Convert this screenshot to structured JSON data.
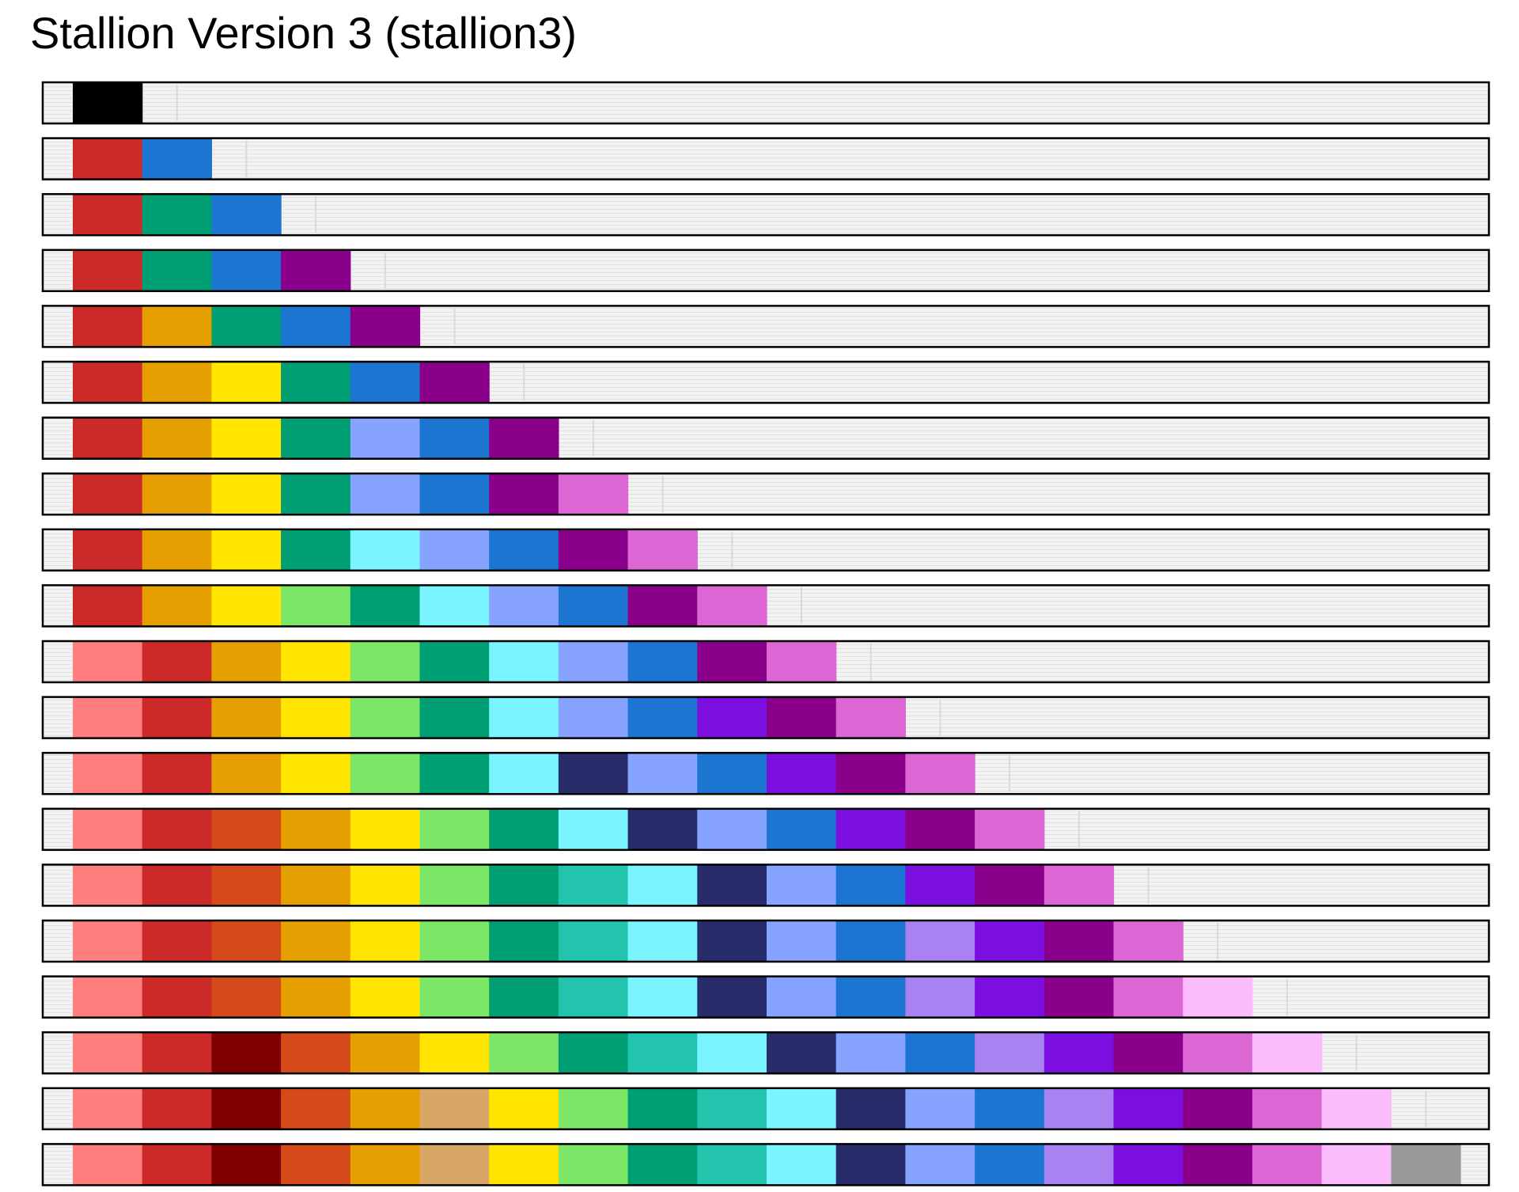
{
  "title": "Stallion Version 3 (stallion3)",
  "chart_data": {
    "type": "palette-strips",
    "title": "Stallion Version 3 (stallion3)",
    "background": "#f2f2f2",
    "border_color": "#000000",
    "rows": [
      {
        "n": 1,
        "colors": [
          "#000000"
        ]
      },
      {
        "n": 2,
        "colors": [
          "#cc2929",
          "#1b75d1"
        ]
      },
      {
        "n": 3,
        "colors": [
          "#cc2929",
          "#009e73",
          "#1b75d1"
        ]
      },
      {
        "n": 4,
        "colors": [
          "#cc2929",
          "#009e73",
          "#1b75d1",
          "#8b008b"
        ]
      },
      {
        "n": 5,
        "colors": [
          "#cc2929",
          "#e69f00",
          "#009e73",
          "#1b75d1",
          "#8b008b"
        ]
      },
      {
        "n": 6,
        "colors": [
          "#cc2929",
          "#e69f00",
          "#ffe500",
          "#009e73",
          "#1b75d1",
          "#8b008b"
        ]
      },
      {
        "n": 7,
        "colors": [
          "#cc2929",
          "#e69f00",
          "#ffe500",
          "#009e73",
          "#85a3ff",
          "#1b75d1",
          "#8b008b"
        ]
      },
      {
        "n": 8,
        "colors": [
          "#cc2929",
          "#e69f00",
          "#ffe500",
          "#009e73",
          "#85a3ff",
          "#1b75d1",
          "#8b008b",
          "#db66d4"
        ]
      },
      {
        "n": 9,
        "colors": [
          "#cc2929",
          "#e69f00",
          "#ffe500",
          "#009e73",
          "#7af5ff",
          "#85a3ff",
          "#1b75d1",
          "#8b008b",
          "#db66d4"
        ]
      },
      {
        "n": 10,
        "colors": [
          "#cc2929",
          "#e69f00",
          "#ffe500",
          "#7ce666",
          "#009e73",
          "#7af5ff",
          "#85a3ff",
          "#1b75d1",
          "#8b008b",
          "#db66d4"
        ]
      },
      {
        "n": 11,
        "colors": [
          "#ff7f7f",
          "#cc2929",
          "#e69f00",
          "#ffe500",
          "#7ce666",
          "#009e73",
          "#7af5ff",
          "#85a3ff",
          "#1b75d1",
          "#8b008b",
          "#db66d4"
        ]
      },
      {
        "n": 12,
        "colors": [
          "#ff7f7f",
          "#cc2929",
          "#e69f00",
          "#ffe500",
          "#7ce666",
          "#009e73",
          "#7af5ff",
          "#85a3ff",
          "#1b75d1",
          "#7b0fe0",
          "#8b008b",
          "#db66d4"
        ]
      },
      {
        "n": 13,
        "colors": [
          "#ff7f7f",
          "#cc2929",
          "#e69f00",
          "#ffe500",
          "#7ce666",
          "#009e73",
          "#7af5ff",
          "#282c6b",
          "#85a3ff",
          "#1b75d1",
          "#7b0fe0",
          "#8b008b",
          "#db66d4"
        ]
      },
      {
        "n": 14,
        "colors": [
          "#ff7f7f",
          "#cc2929",
          "#d44a1a",
          "#e69f00",
          "#ffe500",
          "#7ce666",
          "#009e73",
          "#7af5ff",
          "#282c6b",
          "#85a3ff",
          "#1b75d1",
          "#7b0fe0",
          "#8b008b",
          "#db66d4"
        ]
      },
      {
        "n": 15,
        "colors": [
          "#ff7f7f",
          "#cc2929",
          "#d44a1a",
          "#e69f00",
          "#ffe500",
          "#7ce666",
          "#009e73",
          "#22c4ae",
          "#7af5ff",
          "#282c6b",
          "#85a3ff",
          "#1b75d1",
          "#7b0fe0",
          "#8b008b",
          "#db66d4"
        ]
      },
      {
        "n": 16,
        "colors": [
          "#ff7f7f",
          "#cc2929",
          "#d44a1a",
          "#e69f00",
          "#ffe500",
          "#7ce666",
          "#009e73",
          "#22c4ae",
          "#7af5ff",
          "#282c6b",
          "#85a3ff",
          "#1b75d1",
          "#a882f0",
          "#7b0fe0",
          "#8b008b",
          "#db66d4"
        ]
      },
      {
        "n": 17,
        "colors": [
          "#ff7f7f",
          "#cc2929",
          "#d44a1a",
          "#e69f00",
          "#ffe500",
          "#7ce666",
          "#009e73",
          "#22c4ae",
          "#7af5ff",
          "#282c6b",
          "#85a3ff",
          "#1b75d1",
          "#a882f0",
          "#7b0fe0",
          "#8b008b",
          "#db66d4",
          "#fbbcfb"
        ]
      },
      {
        "n": 18,
        "colors": [
          "#ff7f7f",
          "#cc2929",
          "#7f0000",
          "#d44a1a",
          "#e69f00",
          "#ffe500",
          "#7ce666",
          "#009e73",
          "#22c4ae",
          "#7af5ff",
          "#282c6b",
          "#85a3ff",
          "#1b75d1",
          "#a882f0",
          "#7b0fe0",
          "#8b008b",
          "#db66d4",
          "#fbbcfb"
        ]
      },
      {
        "n": 19,
        "colors": [
          "#ff7f7f",
          "#cc2929",
          "#7f0000",
          "#d44a1a",
          "#e69f00",
          "#d8a766",
          "#ffe500",
          "#7ce666",
          "#009e73",
          "#22c4ae",
          "#7af5ff",
          "#282c6b",
          "#85a3ff",
          "#1b75d1",
          "#a882f0",
          "#7b0fe0",
          "#8b008b",
          "#db66d4",
          "#fbbcfb"
        ]
      },
      {
        "n": 20,
        "colors": [
          "#ff7f7f",
          "#cc2929",
          "#7f0000",
          "#d44a1a",
          "#e69f00",
          "#d8a766",
          "#ffe500",
          "#7ce666",
          "#009e73",
          "#22c4ae",
          "#7af5ff",
          "#282c6b",
          "#85a3ff",
          "#1b75d1",
          "#a882f0",
          "#7b0fe0",
          "#8b008b",
          "#db66d4",
          "#fbbcfb",
          "#999999"
        ]
      }
    ]
  }
}
